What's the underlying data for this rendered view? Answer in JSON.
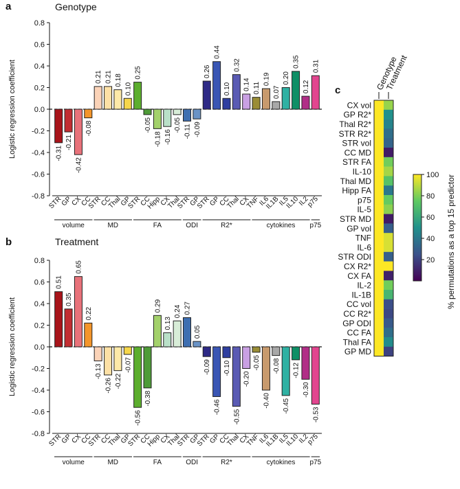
{
  "panels": {
    "a": {
      "letter": "a",
      "title": "Genotype"
    },
    "b": {
      "letter": "b",
      "title": "Treatment"
    },
    "c": {
      "letter": "c",
      "col_labels": [
        "Genotype",
        "Treatment"
      ]
    }
  },
  "chart_data": [
    {
      "type": "bar",
      "title": "Genotype",
      "panel": "a",
      "ylabel": "Logistic regression coefficient",
      "ylim": [
        -0.8,
        0.8
      ],
      "yticks": [
        "0.8",
        "0.6",
        "0.4",
        "0.2",
        "0.0",
        "-0.2",
        "-0.4",
        "-0.6",
        "-0.8"
      ],
      "categories": [
        "STR",
        "GP",
        "CX",
        "CC",
        "STR",
        "CC",
        "Thal",
        "GP",
        "STR",
        "CC",
        "Hipp",
        "CX",
        "Thal",
        "STR",
        "GP",
        "STR",
        "GP",
        "CC",
        "Thal",
        "CX",
        "TNF",
        "IL6",
        "IL1B",
        "IL5",
        "IL10",
        "IL2",
        "p75"
      ],
      "values": [
        -0.31,
        -0.21,
        -0.42,
        -0.08,
        0.21,
        0.21,
        0.18,
        0.1,
        0.25,
        -0.05,
        -0.18,
        -0.16,
        -0.05,
        -0.11,
        -0.09,
        0.26,
        0.44,
        0.1,
        0.32,
        0.14,
        0.11,
        0.19,
        0.07,
        0.2,
        0.35,
        0.12,
        0.31
      ],
      "value_labels": [
        "-0.31",
        "-0.21",
        "-0.42",
        "-0.08",
        "0.21",
        "0.21",
        "0.18",
        "0.10",
        "0.25",
        "-0.05",
        "-0.18",
        "-0.16",
        "-0.05",
        "-0.11",
        "-0.09",
        "0.26",
        "0.44",
        "0.10",
        "0.32",
        "0.14",
        "0.11",
        "0.19",
        "0.07",
        "0.20",
        "0.35",
        "0.12",
        "0.31"
      ],
      "colors": [
        "#a8141a",
        "#c22d32",
        "#e8727a",
        "#f4952a",
        "#fbd3b8",
        "#fde0a5",
        "#fde9a8",
        "#f6d64a",
        "#5cae2e",
        "#4e9b38",
        "#a3d16b",
        "#b9e0c8",
        "#d8edd8",
        "#3f6fb1",
        "#6a93c6",
        "#2e2a86",
        "#3a56b4",
        "#2f3fa0",
        "#5a5bb4",
        "#c9a0e3",
        "#9a8d36",
        "#c89a6d",
        "#a8a8a8",
        "#2fb1a3",
        "#0f8f66",
        "#b12e87",
        "#e2458f"
      ],
      "groups": [
        {
          "name": "volume",
          "start": 0,
          "end": 3
        },
        {
          "name": "MD",
          "start": 4,
          "end": 7
        },
        {
          "name": "FA",
          "start": 8,
          "end": 12
        },
        {
          "name": "ODI",
          "start": 13,
          "end": 14
        },
        {
          "name": "R2*",
          "start": 15,
          "end": 19
        },
        {
          "name": "cytokines",
          "start": 20,
          "end": 25
        },
        {
          "name": "p75",
          "start": 26,
          "end": 26
        }
      ]
    },
    {
      "type": "bar",
      "title": "Treatment",
      "panel": "b",
      "ylabel": "Logistic regression coefficient",
      "ylim": [
        -0.8,
        0.8
      ],
      "yticks": [
        "0.8",
        "0.6",
        "0.4",
        "0.2",
        "0.0",
        "-0.2",
        "-0.4",
        "-0.6",
        "-0.8"
      ],
      "categories": [
        "STR",
        "GP",
        "CX",
        "CC",
        "STR",
        "CC",
        "Thal",
        "GP",
        "STR",
        "CC",
        "Hipp",
        "CX",
        "Thal",
        "STR",
        "GP",
        "STR",
        "GP",
        "CC",
        "Thal",
        "CX",
        "TNF",
        "IL6",
        "IL1B",
        "IL5",
        "IL10",
        "IL2",
        "p75"
      ],
      "values": [
        0.51,
        0.35,
        0.65,
        0.22,
        -0.13,
        -0.26,
        -0.22,
        -0.07,
        -0.56,
        -0.38,
        0.29,
        0.13,
        0.24,
        0.27,
        0.05,
        -0.09,
        -0.46,
        -0.1,
        -0.55,
        -0.2,
        -0.05,
        -0.4,
        -0.08,
        -0.45,
        -0.12,
        -0.3,
        -0.53
      ],
      "value_labels": [
        "0.51",
        "0.35",
        "0.65",
        "0.22",
        "-0.13",
        "-0.26",
        "-0.22",
        "-0.07",
        "-0.56",
        "-0.38",
        "0.29",
        "0.13",
        "0.24",
        "0.27",
        "0.05",
        "-0.09",
        "-0.46",
        "-0.10",
        "-0.55",
        "-0.20",
        "-0.05",
        "-0.40",
        "-0.08",
        "-0.45",
        "-0.12",
        "-0.30",
        "-0.53"
      ],
      "colors": [
        "#a8141a",
        "#c22d32",
        "#e8727a",
        "#f4952a",
        "#fbd3b8",
        "#fde0a5",
        "#fde9a8",
        "#f6d64a",
        "#5cae2e",
        "#4e9b38",
        "#a3d16b",
        "#b9e0c8",
        "#d8edd8",
        "#3f6fb1",
        "#6a93c6",
        "#2e2a86",
        "#3a56b4",
        "#2f3fa0",
        "#5a5bb4",
        "#c9a0e3",
        "#9a8d36",
        "#c89a6d",
        "#a8a8a8",
        "#2fb1a3",
        "#0f8f66",
        "#b12e87",
        "#e2458f"
      ],
      "groups": [
        {
          "name": "volume",
          "start": 0,
          "end": 3
        },
        {
          "name": "MD",
          "start": 4,
          "end": 7
        },
        {
          "name": "FA",
          "start": 8,
          "end": 12
        },
        {
          "name": "ODI",
          "start": 13,
          "end": 14
        },
        {
          "name": "R2*",
          "start": 15,
          "end": 19
        },
        {
          "name": "cytokines",
          "start": 20,
          "end": 25
        },
        {
          "name": "p75",
          "start": 26,
          "end": 26
        }
      ]
    },
    {
      "type": "heatmap",
      "panel": "c",
      "columns": [
        "Genotype",
        "Treatment"
      ],
      "rows": [
        "CX vol",
        "GP R2*",
        "Thal R2*",
        "STR R2*",
        "STR vol",
        "CC MD",
        "STR FA",
        "IL-10",
        "Thal MD",
        "Hipp FA",
        "p75",
        "IL-5",
        "STR MD",
        "GP vol",
        "TNF",
        "IL-6",
        "STR ODI",
        "CX R2*",
        "CX FA",
        "IL-2",
        "IL-1B",
        "CC vol",
        "CC R2*",
        "GP ODI",
        "CC FA",
        "Thal FA",
        "GP MD"
      ],
      "values": [
        [
          100,
          84
        ],
        [
          100,
          50
        ],
        [
          100,
          45
        ],
        [
          100,
          36
        ],
        [
          100,
          32
        ],
        [
          100,
          8
        ],
        [
          100,
          78
        ],
        [
          100,
          86
        ],
        [
          100,
          72
        ],
        [
          100,
          40
        ],
        [
          100,
          76
        ],
        [
          100,
          82
        ],
        [
          100,
          8
        ],
        [
          100,
          30
        ],
        [
          100,
          94
        ],
        [
          100,
          94
        ],
        [
          100,
          30
        ],
        [
          100,
          100
        ],
        [
          100,
          10
        ],
        [
          100,
          78
        ],
        [
          100,
          66
        ],
        [
          100,
          24
        ],
        [
          100,
          22
        ],
        [
          100,
          28
        ],
        [
          100,
          36
        ],
        [
          100,
          48
        ],
        [
          100,
          20
        ]
      ],
      "colorbar": {
        "label": "% permutations as a top 15 predictor",
        "range": [
          0,
          100
        ],
        "ticks": [
          "100",
          "80",
          "60",
          "40",
          "20"
        ]
      }
    }
  ]
}
